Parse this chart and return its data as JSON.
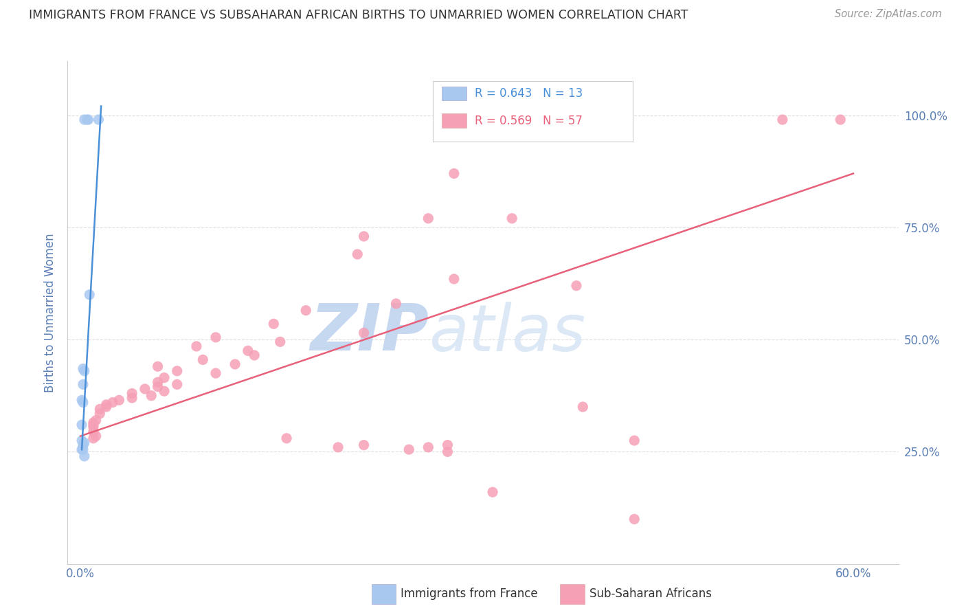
{
  "title": "IMMIGRANTS FROM FRANCE VS SUBSAHARAN AFRICAN BIRTHS TO UNMARRIED WOMEN CORRELATION CHART",
  "source": "Source: ZipAtlas.com",
  "ylabel": "Births to Unmarried Women",
  "watermark": "ZIPatlas",
  "blue_scatter": [
    [
      0.003,
      0.99
    ],
    [
      0.005,
      0.99
    ],
    [
      0.006,
      0.99
    ],
    [
      0.014,
      0.99
    ],
    [
      0.007,
      0.6
    ],
    [
      0.002,
      0.435
    ],
    [
      0.003,
      0.43
    ],
    [
      0.002,
      0.4
    ],
    [
      0.001,
      0.365
    ],
    [
      0.002,
      0.36
    ],
    [
      0.001,
      0.31
    ],
    [
      0.001,
      0.275
    ],
    [
      0.003,
      0.27
    ],
    [
      0.002,
      0.265
    ],
    [
      0.001,
      0.255
    ],
    [
      0.002,
      0.255
    ],
    [
      0.003,
      0.24
    ]
  ],
  "pink_scatter": [
    [
      0.59,
      0.99
    ],
    [
      0.545,
      0.99
    ],
    [
      0.29,
      0.87
    ],
    [
      0.335,
      0.77
    ],
    [
      0.27,
      0.77
    ],
    [
      0.22,
      0.73
    ],
    [
      0.215,
      0.69
    ],
    [
      0.29,
      0.635
    ],
    [
      0.385,
      0.62
    ],
    [
      0.245,
      0.58
    ],
    [
      0.175,
      0.565
    ],
    [
      0.15,
      0.535
    ],
    [
      0.22,
      0.515
    ],
    [
      0.105,
      0.505
    ],
    [
      0.155,
      0.495
    ],
    [
      0.09,
      0.485
    ],
    [
      0.13,
      0.475
    ],
    [
      0.135,
      0.465
    ],
    [
      0.095,
      0.455
    ],
    [
      0.12,
      0.445
    ],
    [
      0.06,
      0.44
    ],
    [
      0.075,
      0.43
    ],
    [
      0.105,
      0.425
    ],
    [
      0.065,
      0.415
    ],
    [
      0.06,
      0.405
    ],
    [
      0.075,
      0.4
    ],
    [
      0.06,
      0.395
    ],
    [
      0.05,
      0.39
    ],
    [
      0.065,
      0.385
    ],
    [
      0.04,
      0.38
    ],
    [
      0.055,
      0.375
    ],
    [
      0.04,
      0.37
    ],
    [
      0.03,
      0.365
    ],
    [
      0.025,
      0.36
    ],
    [
      0.02,
      0.355
    ],
    [
      0.02,
      0.35
    ],
    [
      0.015,
      0.345
    ],
    [
      0.015,
      0.335
    ],
    [
      0.012,
      0.32
    ],
    [
      0.01,
      0.315
    ],
    [
      0.01,
      0.31
    ],
    [
      0.01,
      0.305
    ],
    [
      0.01,
      0.295
    ],
    [
      0.012,
      0.285
    ],
    [
      0.01,
      0.28
    ],
    [
      0.16,
      0.28
    ],
    [
      0.22,
      0.265
    ],
    [
      0.2,
      0.26
    ],
    [
      0.255,
      0.255
    ],
    [
      0.285,
      0.25
    ],
    [
      0.39,
      0.35
    ],
    [
      0.43,
      0.275
    ],
    [
      0.285,
      0.265
    ],
    [
      0.27,
      0.26
    ],
    [
      0.32,
      0.16
    ],
    [
      0.43,
      0.1
    ]
  ],
  "blue_line_x": [
    0.001,
    0.016
  ],
  "blue_line_y": [
    0.255,
    1.02
  ],
  "pink_line_x": [
    0.0,
    0.6
  ],
  "pink_line_y": [
    0.285,
    0.87
  ],
  "scatter_blue_color": "#a8c8f0",
  "scatter_pink_color": "#f5a0b5",
  "line_blue_color": "#4a90d9",
  "line_pink_color": "#e8607a",
  "grid_color": "#dddddd",
  "background_color": "#ffffff",
  "title_color": "#333333",
  "axis_label_color": "#5a7fb5",
  "tick_label_color": "#5a7fb5",
  "watermark_color": "#ccddf5",
  "xlim": [
    -0.01,
    0.635
  ],
  "ylim": [
    0.0,
    1.12
  ],
  "yticks": [
    0.0,
    0.25,
    0.5,
    0.75,
    1.0
  ],
  "ytick_labels_right": [
    "",
    "25.0%",
    "50.0%",
    "75.0%",
    "100.0%"
  ],
  "xticks": [
    0.0,
    0.1,
    0.2,
    0.3,
    0.4,
    0.5,
    0.6
  ],
  "xtick_labels": [
    "0.0%",
    "",
    "",
    "",
    "",
    "",
    "60.0%"
  ]
}
